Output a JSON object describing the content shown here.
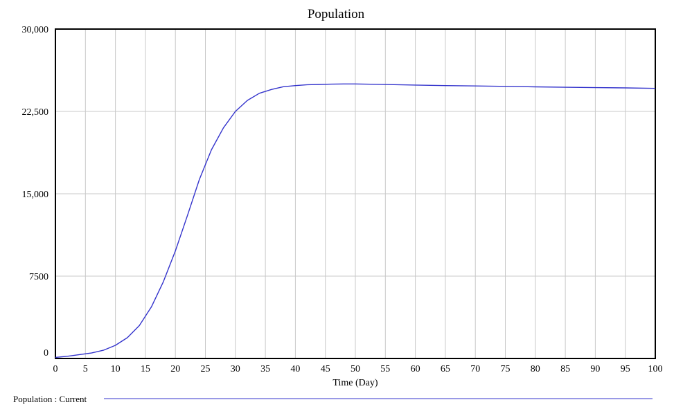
{
  "chart_data": {
    "type": "line",
    "title": "Population",
    "xlabel": "Time (Day)",
    "ylabel": "",
    "xlim": [
      0,
      100
    ],
    "ylim": [
      0,
      30000
    ],
    "x_ticks": [
      "0",
      "5",
      "10",
      "15",
      "20",
      "25",
      "30",
      "35",
      "40",
      "45",
      "50",
      "55",
      "60",
      "65",
      "70",
      "75",
      "80",
      "85",
      "90",
      "95",
      "100"
    ],
    "y_ticks": [
      "0",
      "7500",
      "15,000",
      "22,500",
      "30,000"
    ],
    "y_tick_values": [
      0,
      7500,
      15000,
      22500,
      30000
    ],
    "grid": true,
    "legend_position": "bottom",
    "series": [
      {
        "name": "Population : Current",
        "color": "#3333cc",
        "x": [
          0,
          2,
          4,
          6,
          8,
          10,
          12,
          14,
          16,
          18,
          20,
          22,
          24,
          26,
          28,
          30,
          32,
          34,
          36,
          38,
          40,
          42,
          44,
          46,
          48,
          50,
          55,
          60,
          65,
          70,
          75,
          80,
          85,
          90,
          95,
          100
        ],
        "values": [
          100,
          200,
          350,
          500,
          750,
          1200,
          1900,
          3000,
          4700,
          7000,
          9800,
          13000,
          16300,
          19000,
          21000,
          22500,
          23500,
          24150,
          24500,
          24750,
          24850,
          24930,
          24960,
          24985,
          25000,
          25000,
          24950,
          24900,
          24850,
          24820,
          24780,
          24740,
          24700,
          24670,
          24640,
          24600
        ]
      }
    ]
  }
}
